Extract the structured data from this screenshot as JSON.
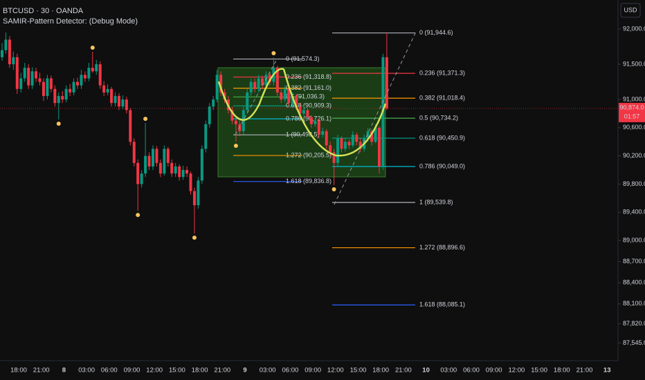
{
  "chart_data": {
    "type": "candlestick",
    "title": "BTCUSD · 30 · OANDA",
    "subtitle": "SAMIR-Pattern Detector: (Debug Mode)",
    "currency_button": "USD",
    "up_color": "#089981",
    "down_color": "#f23645",
    "pivot_color": "#f7c35f",
    "ylim": [
      87314,
      92412
    ],
    "yticks": [
      {
        "value": 92000,
        "label": "92,000.0"
      },
      {
        "value": 91500,
        "label": "91,500.0"
      },
      {
        "value": 91000,
        "label": "91,000.0"
      },
      {
        "value": 90600,
        "label": "90,600.0"
      },
      {
        "value": 90200,
        "label": "90,200.0"
      },
      {
        "value": 89800,
        "label": "89,800.0"
      },
      {
        "value": 89400,
        "label": "89,400.0"
      },
      {
        "value": 89000,
        "label": "89,000.0"
      },
      {
        "value": 88700,
        "label": "88,700.0"
      },
      {
        "value": 88400,
        "label": "88,400.0"
      },
      {
        "value": 88100,
        "label": "88,100.0"
      },
      {
        "value": 87820,
        "label": "87,820.0"
      },
      {
        "value": 87545,
        "label": "87,545.0"
      }
    ],
    "time_labels": [
      "18:00",
      "21:00",
      "8",
      "03:00",
      "06:00",
      "09:00",
      "12:00",
      "15:00",
      "18:00",
      "21:00",
      "9",
      "03:00",
      "06:00",
      "09:00",
      "12:00",
      "15:00",
      "18:00",
      "21:00",
      "10",
      "03:00",
      "06:00",
      "09:00",
      "12:00",
      "15:00",
      "18:00",
      "21:00",
      "13"
    ],
    "current_price": {
      "value": 90874.0,
      "label": "90,874.0"
    },
    "countdown": "01:57",
    "candles": [
      [
        91600,
        91800,
        91550,
        91700
      ],
      [
        91700,
        91950,
        91650,
        91850
      ],
      [
        91850,
        91900,
        91450,
        91500
      ],
      [
        91500,
        91680,
        91420,
        91600
      ],
      [
        91600,
        91650,
        91080,
        91150
      ],
      [
        91150,
        91380,
        91100,
        91300
      ],
      [
        91300,
        91520,
        91250,
        91450
      ],
      [
        91450,
        91500,
        91150,
        91200
      ],
      [
        91200,
        91460,
        91150,
        91400
      ],
      [
        91400,
        91450,
        91250,
        91300
      ],
      [
        91300,
        91380,
        91200,
        91250
      ],
      [
        91250,
        91300,
        90980,
        91050
      ],
      [
        91050,
        91350,
        91000,
        91300
      ],
      [
        91300,
        91340,
        91100,
        91150
      ],
      [
        91150,
        91200,
        90900,
        90950
      ],
      [
        90950,
        91100,
        90716,
        91050
      ],
      [
        91050,
        91120,
        90950,
        91000
      ],
      [
        91000,
        91200,
        90960,
        91150
      ],
      [
        91150,
        91220,
        91050,
        91100
      ],
      [
        91100,
        91300,
        91060,
        91250
      ],
      [
        91250,
        91310,
        91150,
        91200
      ],
      [
        91200,
        91420,
        91150,
        91350
      ],
      [
        91350,
        91400,
        91250,
        91300
      ],
      [
        91300,
        91520,
        91260,
        91450
      ],
      [
        91450,
        91677,
        91380,
        91400
      ],
      [
        91400,
        91560,
        91350,
        91500
      ],
      [
        91500,
        91540,
        91150,
        91200
      ],
      [
        91200,
        91260,
        91050,
        91100
      ],
      [
        91100,
        91220,
        91060,
        91150
      ],
      [
        91150,
        91180,
        90900,
        90950
      ],
      [
        90950,
        91100,
        90900,
        91050
      ],
      [
        91050,
        91090,
        90850,
        90900
      ],
      [
        90900,
        91060,
        90860,
        91000
      ],
      [
        91000,
        91040,
        90800,
        90850
      ],
      [
        90850,
        90880,
        90350,
        90400
      ],
      [
        90400,
        90450,
        90050,
        90100
      ],
      [
        90100,
        90150,
        89420,
        89800
      ],
      [
        89800,
        90000,
        89750,
        89950
      ],
      [
        89950,
        90667,
        89900,
        90200
      ],
      [
        90200,
        90250,
        90000,
        90050
      ],
      [
        90050,
        90350,
        90000,
        90300
      ],
      [
        90300,
        90340,
        90050,
        90100
      ],
      [
        90100,
        90150,
        89900,
        89950
      ],
      [
        89950,
        90350,
        89920,
        90300
      ],
      [
        90300,
        90330,
        90050,
        90100
      ],
      [
        90100,
        90150,
        89900,
        89950
      ],
      [
        89950,
        90100,
        89900,
        90050
      ],
      [
        90050,
        90080,
        89850,
        89900
      ],
      [
        89900,
        90060,
        89860,
        90000
      ],
      [
        90000,
        90050,
        89900,
        89950
      ],
      [
        89950,
        89980,
        89650,
        89700
      ],
      [
        89700,
        89750,
        89098,
        89500
      ],
      [
        89500,
        89900,
        89450,
        89850
      ],
      [
        89850,
        90350,
        89800,
        90300
      ],
      [
        90300,
        90700,
        90250,
        90650
      ],
      [
        90650,
        90950,
        90600,
        90900
      ],
      [
        90900,
        91050,
        90850,
        91000
      ],
      [
        91000,
        91420,
        90960,
        91350
      ],
      [
        91350,
        91400,
        91050,
        91100
      ],
      [
        91100,
        91150,
        90950,
        91000
      ],
      [
        91000,
        91050,
        90800,
        90850
      ],
      [
        90850,
        90900,
        90650,
        90700
      ],
      [
        90700,
        90750,
        90402,
        90650
      ],
      [
        90650,
        90700,
        90480,
        90550
      ],
      [
        90550,
        90900,
        90500,
        90850
      ],
      [
        90850,
        91150,
        90800,
        91100
      ],
      [
        91100,
        91300,
        91050,
        91250
      ],
      [
        91250,
        91300,
        91100,
        91150
      ],
      [
        91150,
        91350,
        91100,
        91300
      ],
      [
        91300,
        91340,
        91150,
        91200
      ],
      [
        91200,
        91400,
        91150,
        91350
      ],
      [
        91350,
        91380,
        91200,
        91250
      ],
      [
        91250,
        91598,
        91200,
        91450
      ],
      [
        91450,
        91480,
        91050,
        91100
      ],
      [
        91100,
        91150,
        90950,
        91000
      ],
      [
        91000,
        91200,
        90960,
        91150
      ],
      [
        91150,
        91180,
        90900,
        90950
      ],
      [
        90950,
        91100,
        90900,
        91050
      ],
      [
        91050,
        91080,
        90850,
        90900
      ],
      [
        90900,
        90950,
        90750,
        90800
      ],
      [
        90800,
        90900,
        90760,
        90850
      ],
      [
        90850,
        90880,
        90700,
        90750
      ],
      [
        90750,
        90780,
        90600,
        90650
      ],
      [
        90650,
        90750,
        90610,
        90700
      ],
      [
        90700,
        90730,
        90450,
        90500
      ],
      [
        90500,
        90600,
        90460,
        90550
      ],
      [
        90550,
        90580,
        90300,
        90350
      ],
      [
        90350,
        90400,
        90200,
        90250
      ],
      [
        90250,
        90300,
        89785,
        90100
      ],
      [
        90100,
        90500,
        90050,
        90450
      ],
      [
        90450,
        90480,
        90250,
        90300
      ],
      [
        90300,
        90450,
        90260,
        90400
      ],
      [
        90400,
        90430,
        90300,
        90350
      ],
      [
        90350,
        90550,
        90320,
        90500
      ],
      [
        90500,
        90530,
        90350,
        90400
      ],
      [
        90400,
        90450,
        90250,
        90300
      ],
      [
        90300,
        90500,
        90260,
        90450
      ],
      [
        90450,
        90600,
        90400,
        90550
      ],
      [
        90550,
        90580,
        90350,
        90400
      ],
      [
        90400,
        90650,
        90380,
        90600
      ],
      [
        90600,
        90620,
        89950,
        90050
      ],
      [
        90050,
        91650,
        90000,
        91600
      ],
      [
        91600,
        91944.6,
        90850,
        90874
      ]
    ],
    "pivots": [
      [
        15,
        90716
      ],
      [
        24,
        91677
      ],
      [
        36,
        89420
      ],
      [
        38,
        90667
      ],
      [
        51,
        89098
      ],
      [
        62,
        90402
      ],
      [
        72,
        91598
      ],
      [
        88,
        89785
      ]
    ],
    "fib_sets": [
      {
        "levels": [
          {
            "price": 91574.3,
            "label": "0 (91,574.3)",
            "color": "#b2b5be"
          },
          {
            "price": 91318.8,
            "label": "0.236 (91,318.8)",
            "color": "#f23645"
          },
          {
            "price": 91161.0,
            "label": "0.382 (91,161.0)",
            "color": "#ff9800"
          },
          {
            "price": 91036.3,
            "label": "0.5 (91,036.3)",
            "color": "#4caf50"
          },
          {
            "price": 90909.3,
            "label": "0.618 (90,909.3)",
            "color": "#089981"
          },
          {
            "price": 90726.1,
            "label": "0.786 (90,726.1)",
            "color": "#00bcd4"
          },
          {
            "price": 90498.5,
            "label": "1 (90,498.5)",
            "color": "#b2b5be"
          },
          {
            "price": 90205.5,
            "label": "1.272 (90,205.5)",
            "color": "#ff9800"
          },
          {
            "price": 89836.8,
            "label": "1.618 (89,836.8)",
            "color": "#2962ff"
          }
        ]
      },
      {
        "levels": [
          {
            "price": 91944.6,
            "label": "0 (91,944.6)",
            "color": "#b2b5be"
          },
          {
            "price": 91371.3,
            "label": "0.236 (91,371.3)",
            "color": "#f23645"
          },
          {
            "price": 91018.4,
            "label": "0.382 (91,018.4)",
            "color": "#ff9800"
          },
          {
            "price": 90734.2,
            "label": "0.5 (90,734.2)",
            "color": "#4caf50"
          },
          {
            "price": 90450.9,
            "label": "0.618 (90,450.9)",
            "color": "#089981"
          },
          {
            "price": 90049.0,
            "label": "0.786 (90,049.0)",
            "color": "#00bcd4"
          },
          {
            "price": 89539.8,
            "label": "1 (89,539.8)",
            "color": "#b2b5be"
          },
          {
            "price": 88896.6,
            "label": "1.272 (88,896.6)",
            "color": "#ff9800"
          },
          {
            "price": 88085.1,
            "label": "1.618 (88,085.1)",
            "color": "#2962ff"
          }
        ]
      }
    ]
  }
}
